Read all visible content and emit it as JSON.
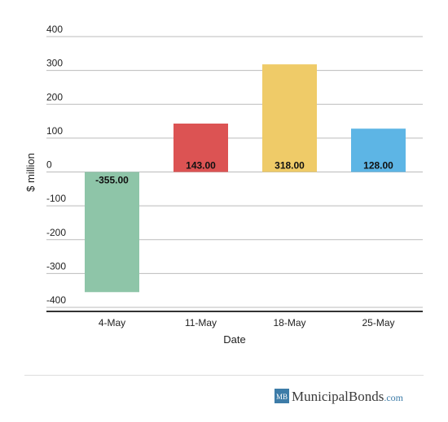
{
  "chart_data": {
    "type": "bar",
    "x_label": "Date",
    "y_label": "$ million",
    "categories": [
      "4-May",
      "11-May",
      "18-May",
      "25-May"
    ],
    "values": [
      -355,
      143,
      318,
      128
    ],
    "value_labels": [
      "-355.00",
      "143.00",
      "318.00",
      "128.00"
    ],
    "colors": [
      "#8ec5a8",
      "#dc5353",
      "#efcb68",
      "#5db5e5"
    ],
    "ylim": [
      -412,
      400
    ],
    "yticks": [
      -400,
      -300,
      -200,
      -100,
      0,
      100,
      200,
      300,
      400
    ],
    "grid": true
  },
  "footer": {
    "logo_mark": "MB",
    "brand": "MunicipalBonds",
    "tld": ".com"
  }
}
